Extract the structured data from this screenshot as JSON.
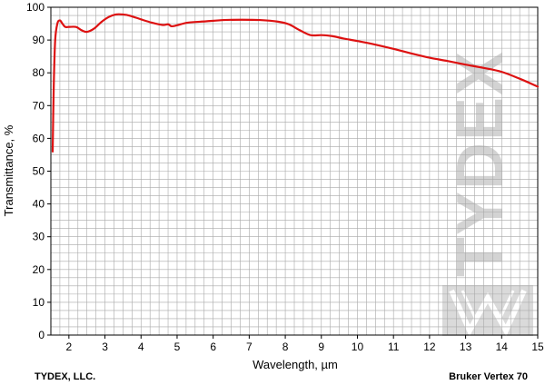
{
  "chart_data": {
    "type": "line",
    "xlabel": "Wavelength, µm",
    "ylabel": "Transmittance, %",
    "xlim": [
      1.5,
      15
    ],
    "ylim": [
      0,
      100
    ],
    "x_ticks": [
      2,
      3,
      4,
      5,
      6,
      7,
      8,
      9,
      10,
      11,
      12,
      13,
      14,
      15
    ],
    "y_ticks": [
      0,
      10,
      20,
      30,
      40,
      50,
      60,
      70,
      80,
      90,
      100
    ],
    "grid": true,
    "series": [
      {
        "color": "#dd1111",
        "x": [
          1.55,
          1.58,
          1.62,
          1.68,
          1.75,
          1.82,
          1.9,
          2.0,
          2.2,
          2.35,
          2.5,
          2.7,
          2.9,
          3.1,
          3.3,
          3.5,
          3.7,
          4.0,
          4.3,
          4.6,
          4.75,
          4.85,
          5.0,
          5.3,
          5.8,
          6.3,
          6.8,
          7.3,
          7.8,
          8.1,
          8.4,
          8.7,
          9.0,
          9.3,
          9.6,
          10.0,
          10.5,
          11.0,
          11.5,
          12.0,
          12.5,
          13.0,
          13.5,
          14.0,
          14.5,
          15.0
        ],
        "values": [
          56,
          76,
          90,
          95,
          96,
          95,
          94,
          94,
          94,
          93,
          92.5,
          93.5,
          95.5,
          97,
          97.8,
          97.8,
          97.4,
          96.3,
          95.3,
          94.6,
          94.8,
          94.2,
          94.5,
          95.3,
          95.7,
          96.1,
          96.2,
          96.1,
          95.6,
          94.8,
          93.0,
          91.5,
          91.5,
          91.2,
          90.5,
          89.7,
          88.6,
          87.3,
          85.9,
          84.6,
          83.6,
          82.5,
          81.5,
          80.3,
          78.2,
          75.8
        ]
      }
    ]
  },
  "footer": {
    "left": "TYDEX, LLC.",
    "right": "Bruker Vertex 70"
  },
  "watermark": {
    "text": "TYDEX"
  }
}
